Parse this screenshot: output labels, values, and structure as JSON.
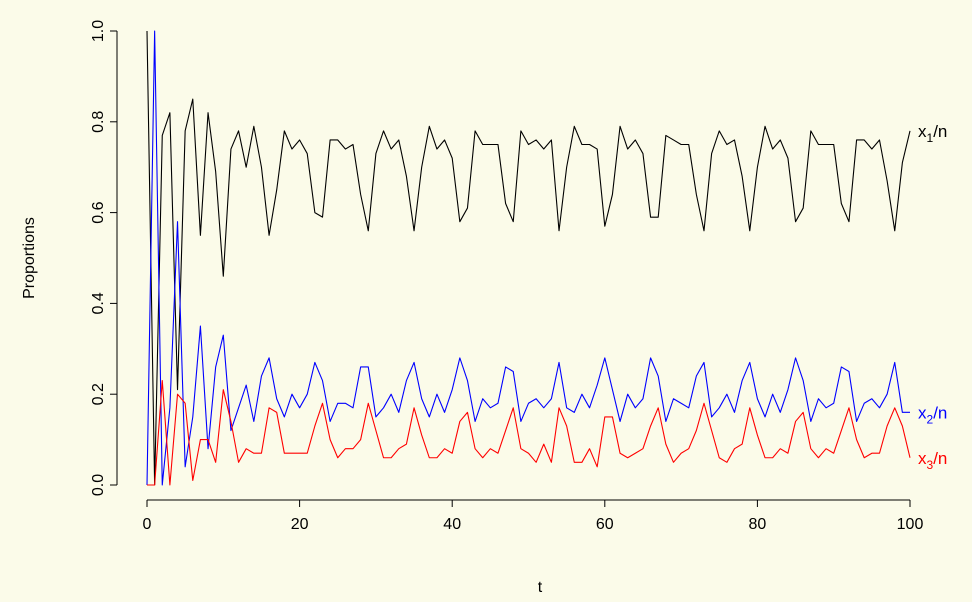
{
  "chart_data": {
    "type": "line",
    "title": "",
    "xlabel": "t",
    "ylabel": "Proportions",
    "xlim": [
      0,
      100
    ],
    "ylim": [
      0,
      1
    ],
    "xticks": [
      0,
      20,
      40,
      60,
      80,
      100
    ],
    "xtick_labels": [
      "0",
      "20",
      "40",
      "60",
      "80",
      "100"
    ],
    "yticks": [
      0,
      0.2,
      0.4,
      0.6,
      0.8,
      1.0
    ],
    "ytick_labels": [
      "0.0",
      "0.2",
      "0.4",
      "0.6",
      "0.8",
      "1.0"
    ],
    "grid": false,
    "legend": "none (series labeled at right end of lines)",
    "series": [
      {
        "name": "x1/n",
        "label_main": "x",
        "label_sub": "1",
        "label_rest": "/n",
        "color": "#000000",
        "x": [
          0,
          1,
          2,
          3,
          4,
          5,
          6,
          7,
          8,
          9,
          10,
          11,
          12,
          13,
          14,
          15,
          16,
          17,
          18,
          19,
          20,
          21,
          22,
          23,
          24,
          25,
          26,
          27,
          28,
          29,
          30,
          31,
          32,
          33,
          34,
          35,
          36,
          37,
          38,
          39,
          40,
          41,
          42,
          43,
          44,
          45,
          46,
          47,
          48,
          49,
          50,
          51,
          52,
          53,
          54,
          55,
          56,
          57,
          58,
          59,
          60,
          61,
          62,
          63,
          64,
          65,
          66,
          67,
          68,
          69,
          70,
          71,
          72,
          73,
          74,
          75,
          76,
          77,
          78,
          79,
          80,
          81,
          82,
          83,
          84,
          85,
          86,
          87,
          88,
          89,
          90,
          91,
          92,
          93,
          94,
          95,
          96,
          97,
          98,
          99,
          100
        ],
        "y": [
          1.0,
          0.0,
          0.77,
          0.82,
          0.21,
          0.78,
          0.85,
          0.55,
          0.82,
          0.69,
          0.46,
          0.74,
          0.78,
          0.7,
          0.79,
          0.7,
          0.55,
          0.65,
          0.78,
          0.74,
          0.76,
          0.73,
          0.6,
          0.59,
          0.76,
          0.76,
          0.74,
          0.75,
          0.64,
          0.56,
          0.73,
          0.78,
          0.74,
          0.76,
          0.68,
          0.56,
          0.7,
          0.79,
          0.74,
          0.76,
          0.72,
          0.58,
          0.61,
          0.78,
          0.75,
          0.75,
          0.75,
          0.62,
          0.58,
          0.78,
          0.75,
          0.76,
          0.74,
          0.76,
          0.56,
          0.7,
          0.79,
          0.75,
          0.75,
          0.74,
          0.57,
          0.64,
          0.79,
          0.74,
          0.76,
          0.73,
          0.59,
          0.59,
          0.77,
          0.76,
          0.75,
          0.75,
          0.64,
          0.56,
          0.73,
          0.78,
          0.75,
          0.76,
          0.68,
          0.56,
          0.7,
          0.79,
          0.74,
          0.76,
          0.72,
          0.58,
          0.61,
          0.78,
          0.75,
          0.75,
          0.75,
          0.62,
          0.58,
          0.76,
          0.76,
          0.74,
          0.76,
          0.67,
          0.56,
          0.71,
          0.78
        ]
      },
      {
        "name": "x2/n",
        "label_main": "x",
        "label_sub": "2",
        "label_rest": "/n",
        "color": "#0000ff",
        "x": [
          0,
          1,
          2,
          3,
          4,
          5,
          6,
          7,
          8,
          9,
          10,
          11,
          12,
          13,
          14,
          15,
          16,
          17,
          18,
          19,
          20,
          21,
          22,
          23,
          24,
          25,
          26,
          27,
          28,
          29,
          30,
          31,
          32,
          33,
          34,
          35,
          36,
          37,
          38,
          39,
          40,
          41,
          42,
          43,
          44,
          45,
          46,
          47,
          48,
          49,
          50,
          51,
          52,
          53,
          54,
          55,
          56,
          57,
          58,
          59,
          60,
          61,
          62,
          63,
          64,
          65,
          66,
          67,
          68,
          69,
          70,
          71,
          72,
          73,
          74,
          75,
          76,
          77,
          78,
          79,
          80,
          81,
          82,
          83,
          84,
          85,
          86,
          87,
          88,
          89,
          90,
          91,
          92,
          93,
          94,
          95,
          96,
          97,
          98,
          99,
          100
        ],
        "y": [
          0.0,
          1.0,
          0.0,
          0.17,
          0.58,
          0.04,
          0.15,
          0.35,
          0.08,
          0.26,
          0.33,
          0.12,
          0.17,
          0.22,
          0.14,
          0.24,
          0.28,
          0.19,
          0.15,
          0.2,
          0.17,
          0.2,
          0.27,
          0.23,
          0.14,
          0.18,
          0.18,
          0.17,
          0.26,
          0.26,
          0.15,
          0.17,
          0.2,
          0.16,
          0.23,
          0.27,
          0.19,
          0.15,
          0.2,
          0.16,
          0.21,
          0.28,
          0.23,
          0.14,
          0.19,
          0.17,
          0.18,
          0.26,
          0.25,
          0.14,
          0.18,
          0.19,
          0.17,
          0.19,
          0.27,
          0.17,
          0.16,
          0.2,
          0.17,
          0.22,
          0.28,
          0.21,
          0.14,
          0.2,
          0.17,
          0.19,
          0.28,
          0.24,
          0.14,
          0.19,
          0.18,
          0.17,
          0.24,
          0.27,
          0.15,
          0.17,
          0.2,
          0.16,
          0.23,
          0.27,
          0.19,
          0.15,
          0.2,
          0.16,
          0.21,
          0.28,
          0.23,
          0.14,
          0.19,
          0.17,
          0.18,
          0.26,
          0.25,
          0.14,
          0.18,
          0.19,
          0.17,
          0.2,
          0.27,
          0.16,
          0.16
        ]
      },
      {
        "name": "x3/n",
        "label_main": "x",
        "label_sub": "3",
        "label_rest": "/n",
        "color": "#ff0000",
        "x": [
          0,
          1,
          2,
          3,
          4,
          5,
          6,
          7,
          8,
          9,
          10,
          11,
          12,
          13,
          14,
          15,
          16,
          17,
          18,
          19,
          20,
          21,
          22,
          23,
          24,
          25,
          26,
          27,
          28,
          29,
          30,
          31,
          32,
          33,
          34,
          35,
          36,
          37,
          38,
          39,
          40,
          41,
          42,
          43,
          44,
          45,
          46,
          47,
          48,
          49,
          50,
          51,
          52,
          53,
          54,
          55,
          56,
          57,
          58,
          59,
          60,
          61,
          62,
          63,
          64,
          65,
          66,
          67,
          68,
          69,
          70,
          71,
          72,
          73,
          74,
          75,
          76,
          77,
          78,
          79,
          80,
          81,
          82,
          83,
          84,
          85,
          86,
          87,
          88,
          89,
          90,
          91,
          92,
          93,
          94,
          95,
          96,
          97,
          98,
          99,
          100
        ],
        "y": [
          0.0,
          0.0,
          0.23,
          0.0,
          0.2,
          0.18,
          0.01,
          0.1,
          0.1,
          0.05,
          0.21,
          0.14,
          0.05,
          0.08,
          0.07,
          0.07,
          0.17,
          0.16,
          0.07,
          0.07,
          0.07,
          0.07,
          0.13,
          0.18,
          0.1,
          0.06,
          0.08,
          0.08,
          0.1,
          0.18,
          0.12,
          0.06,
          0.06,
          0.08,
          0.09,
          0.17,
          0.11,
          0.06,
          0.06,
          0.08,
          0.07,
          0.14,
          0.16,
          0.08,
          0.06,
          0.08,
          0.07,
          0.12,
          0.17,
          0.08,
          0.07,
          0.05,
          0.09,
          0.05,
          0.17,
          0.13,
          0.05,
          0.05,
          0.08,
          0.04,
          0.15,
          0.15,
          0.07,
          0.06,
          0.07,
          0.08,
          0.13,
          0.17,
          0.09,
          0.05,
          0.07,
          0.08,
          0.12,
          0.18,
          0.12,
          0.06,
          0.05,
          0.08,
          0.09,
          0.17,
          0.11,
          0.06,
          0.06,
          0.08,
          0.07,
          0.14,
          0.16,
          0.08,
          0.06,
          0.08,
          0.07,
          0.12,
          0.17,
          0.1,
          0.06,
          0.07,
          0.07,
          0.13,
          0.17,
          0.13,
          0.06
        ]
      }
    ]
  }
}
